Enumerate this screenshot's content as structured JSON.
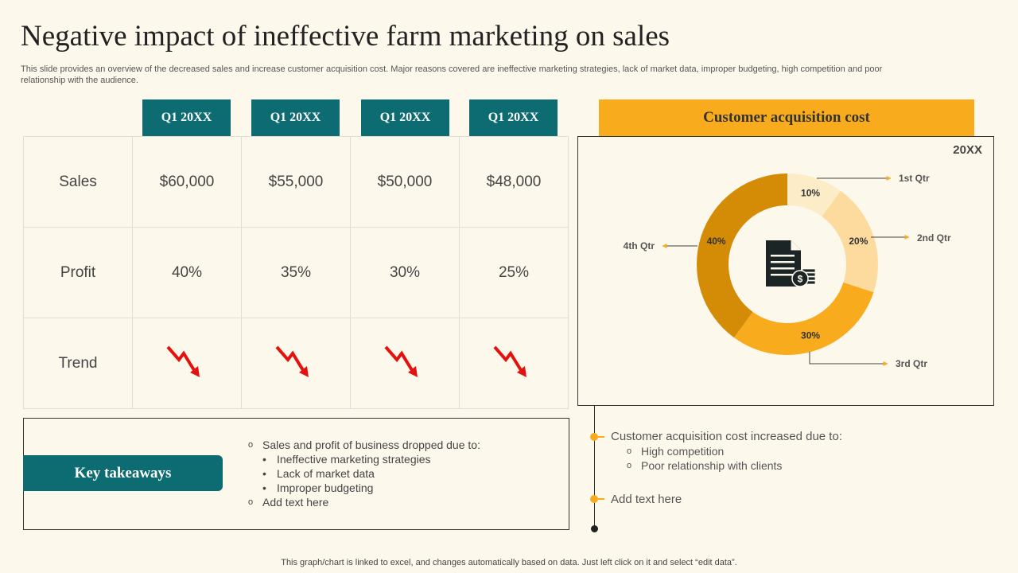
{
  "title": "Negative impact of ineffective farm marketing on sales",
  "subtitle": "This slide provides an overview of the decreased sales and increase customer acquisition cost. Major reasons covered are ineffective marketing strategies, lack of market data, improper budgeting, high competition and poor relationship with the audience.",
  "table": {
    "headers": [
      "Q1 20XX",
      "Q1 20XX",
      "Q1 20XX",
      "Q1 20XX"
    ],
    "rows": [
      {
        "label": "Sales",
        "values": [
          "$60,000",
          "$55,000",
          "$50,000",
          "$48,000"
        ]
      },
      {
        "label": "Profit",
        "values": [
          "40%",
          "35%",
          "30%",
          "25%"
        ]
      },
      {
        "label": "Trend",
        "values": [
          "down-trend-arrow-icon",
          "down-trend-arrow-icon",
          "down-trend-arrow-icon",
          "down-trend-arrow-icon"
        ]
      }
    ]
  },
  "cac": {
    "heading": "Customer acquisition cost",
    "year": "20XX",
    "center_icon": "invoice-dollar-icon"
  },
  "chart_data": {
    "type": "pie",
    "categories": [
      "1st Qtr",
      "2nd Qtr",
      "3rd Qtr",
      "4th Qtr"
    ],
    "values": [
      10,
      20,
      30,
      40
    ],
    "labels": [
      "10%",
      "20%",
      "30%",
      "40%"
    ],
    "colors": [
      "#fdecc8",
      "#fddb9e",
      "#f9ab1e",
      "#d48c06"
    ],
    "donut": true
  },
  "key_takeaways": {
    "label": "Key takeaways",
    "intro": "Sales and profit of business dropped due to:",
    "items": [
      "Ineffective marketing strategies",
      "Lack of market data",
      "Improper budgeting"
    ],
    "add": "Add text here"
  },
  "cac_notes": {
    "intro": "Customer acquisition cost increased due to:",
    "items": [
      "High competition",
      "Poor relationship with clients"
    ],
    "add": "Add text here"
  },
  "footer": "This graph/chart is linked to excel,  and changes automatically based on data. Just left click on it and select “edit data”.",
  "colors": {
    "teal": "#0d6b72",
    "amber": "#f9ab1e",
    "trend_red": "#e4120f"
  }
}
